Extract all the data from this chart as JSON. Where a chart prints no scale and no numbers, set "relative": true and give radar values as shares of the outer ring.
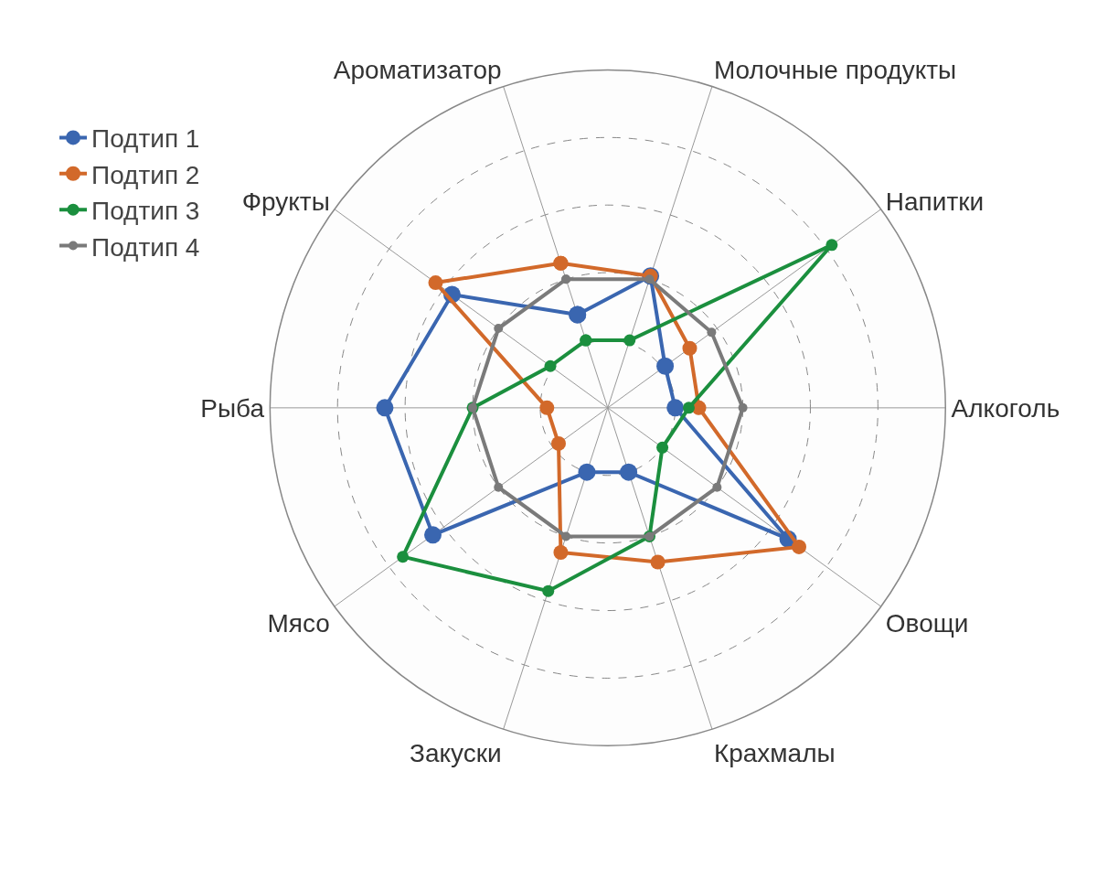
{
  "chart_data": {
    "type": "radar",
    "relative": true,
    "grid": true,
    "legend": "top left",
    "marker": "circle",
    "line_style": "solid",
    "categories": [
      "Ароматизатор",
      "Молочные продукты",
      "Напитки",
      "Алкоголь",
      "Овощи",
      "Крахмалы",
      "Закуски",
      "Мясо",
      "Рыба",
      "Фрукты"
    ],
    "series": [
      {
        "name": "Подтип 1",
        "color": "#3a66b0",
        "values": [
          0.29,
          0.41,
          0.21,
          0.2,
          0.66,
          0.2,
          0.2,
          0.64,
          0.66,
          0.57
        ]
      },
      {
        "name": "Подтип 2",
        "color": "#d2692a",
        "values": [
          0.45,
          0.41,
          0.3,
          0.27,
          0.7,
          0.48,
          0.45,
          0.18,
          0.18,
          0.63
        ]
      },
      {
        "name": "Подтип 3",
        "color": "#1b8f3e",
        "values": [
          0.21,
          0.21,
          0.82,
          0.24,
          0.2,
          0.4,
          0.57,
          0.75,
          0.4,
          0.21
        ]
      },
      {
        "name": "Подтип 4",
        "color": "#7a7a7a",
        "values": [
          0.4,
          0.4,
          0.38,
          0.4,
          0.4,
          0.4,
          0.4,
          0.4,
          0.4,
          0.4
        ]
      }
    ]
  }
}
